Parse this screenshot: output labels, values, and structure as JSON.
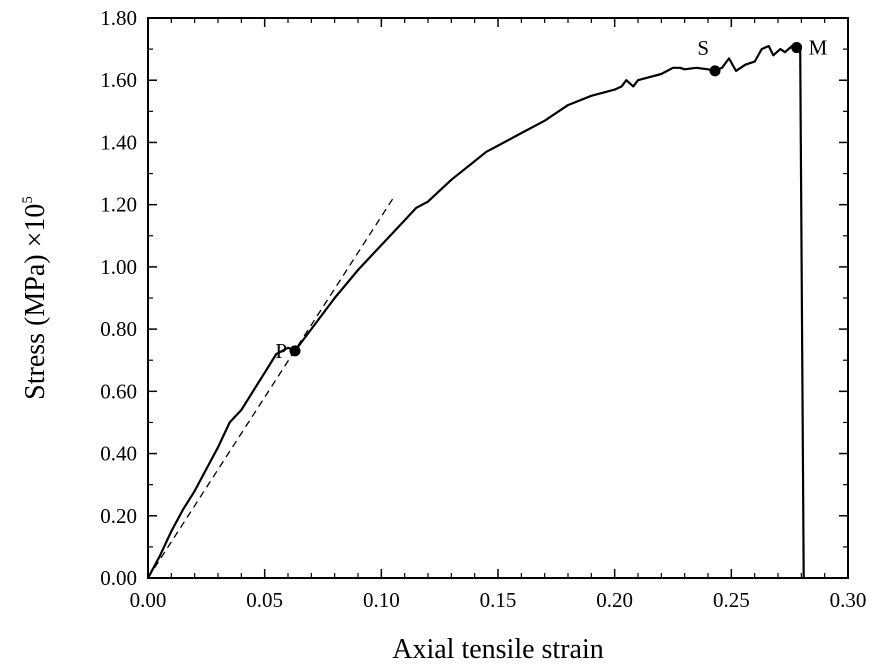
{
  "chart_data": {
    "type": "line",
    "xlabel": "Axial tensile strain",
    "ylabel": "Stress (MPa) ×10",
    "ylabel_superscript": "5",
    "xlim": [
      0.0,
      0.3
    ],
    "ylim": [
      0.0,
      1.8
    ],
    "x_ticks": [
      0.0,
      0.05,
      0.1,
      0.15,
      0.2,
      0.25,
      0.3
    ],
    "x_tick_labels": [
      "0.00",
      "0.05",
      "0.10",
      "0.15",
      "0.20",
      "0.25",
      "0.30"
    ],
    "y_ticks": [
      0.0,
      0.2,
      0.4,
      0.6,
      0.8,
      1.0,
      1.2,
      1.4,
      1.6,
      1.8
    ],
    "y_tick_labels": [
      "0.00",
      "0.20",
      "0.40",
      "0.60",
      "0.80",
      "1.00",
      "1.20",
      "1.40",
      "1.60",
      "1.80"
    ],
    "grid": false,
    "series": [
      {
        "style": "solid",
        "color": "#000000",
        "x": [
          0.0,
          0.005,
          0.01,
          0.015,
          0.02,
          0.025,
          0.03,
          0.035,
          0.04,
          0.045,
          0.05,
          0.055,
          0.06,
          0.063,
          0.07,
          0.08,
          0.09,
          0.1,
          0.11,
          0.115,
          0.12,
          0.13,
          0.14,
          0.145,
          0.15,
          0.16,
          0.17,
          0.18,
          0.19,
          0.2,
          0.203,
          0.205,
          0.208,
          0.21,
          0.215,
          0.22,
          0.225,
          0.228,
          0.23,
          0.235,
          0.24,
          0.243,
          0.246,
          0.249,
          0.252,
          0.256,
          0.26,
          0.263,
          0.266,
          0.268,
          0.271,
          0.273,
          0.276,
          0.278,
          0.279,
          0.2795,
          0.281
        ],
        "y": [
          0.0,
          0.07,
          0.15,
          0.22,
          0.28,
          0.35,
          0.42,
          0.5,
          0.54,
          0.6,
          0.66,
          0.72,
          0.74,
          0.73,
          0.8,
          0.9,
          0.99,
          1.07,
          1.15,
          1.19,
          1.21,
          1.28,
          1.34,
          1.37,
          1.39,
          1.43,
          1.47,
          1.52,
          1.55,
          1.57,
          1.58,
          1.6,
          1.58,
          1.6,
          1.61,
          1.62,
          1.64,
          1.64,
          1.635,
          1.64,
          1.635,
          1.63,
          1.64,
          1.67,
          1.63,
          1.65,
          1.66,
          1.7,
          1.71,
          1.68,
          1.7,
          1.69,
          1.71,
          1.7,
          1.7,
          1.7,
          0.0
        ]
      },
      {
        "style": "dashed",
        "color": "#000000",
        "x": [
          0.0,
          0.105
        ],
        "y": [
          0.0,
          1.22
        ]
      }
    ],
    "points": [
      {
        "label": "P",
        "x": 0.063,
        "y": 0.73,
        "label_side": "left"
      },
      {
        "label": "S",
        "x": 0.243,
        "y": 1.63,
        "label_side": "above-left"
      },
      {
        "label": "M",
        "x": 0.278,
        "y": 1.705,
        "label_side": "right"
      }
    ]
  }
}
